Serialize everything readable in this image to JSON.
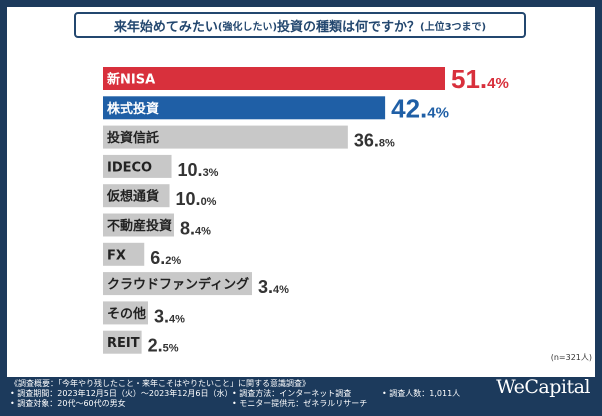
{
  "title": {
    "main_a": "来年始めてみたい",
    "paren": "(強化したい)",
    "main_b": "投資の種類は何ですか？",
    "suffix": "(上位3つまで)"
  },
  "sample_note": "(n=321人)",
  "chart_data": {
    "type": "bar",
    "orientation": "horizontal",
    "categories": [
      "新NISA",
      "株式投資",
      "投資信託",
      "IDECO",
      "仮想通貨",
      "不動産投資",
      "FX",
      "クラウドファンディング",
      "その他",
      "REIT"
    ],
    "values": [
      51.4,
      42.4,
      36.8,
      10.3,
      10.0,
      8.4,
      6.2,
      3.4,
      3.4,
      2.5
    ],
    "value_suffix": "%",
    "highlight_colors": [
      "#d8303c",
      "#1f5fa6"
    ],
    "default_color": "#c8c8c8",
    "title": "来年始めてみたい(強化したい)投資の種類は何ですか？(上位3つまで)",
    "xlabel": "",
    "ylabel": "",
    "xlim": [
      0,
      60
    ]
  },
  "footer": {
    "overview": "《調査概要：「今年やり残したこと・来年こそはやりたいこと」に関する意識調査》",
    "period": "• 調査期間：2023年12月5日（火）～2023年12月6日（水）",
    "target": "• 調査対象：20代～60代の男女",
    "method": "• 調査方法：インターネット調査",
    "provider": "• モニター提供元：ゼネラルリサーチ",
    "count": "• 調査人数：1,011人",
    "brand": "WeCapital"
  }
}
